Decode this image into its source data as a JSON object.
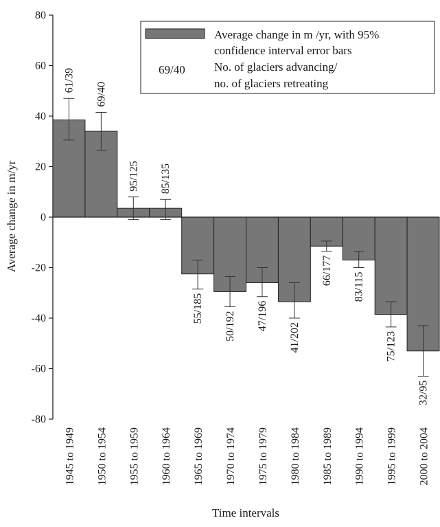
{
  "chart_data": {
    "type": "bar",
    "xlabel": "Time intervals",
    "ylabel": "Average change in m/yr",
    "ylim": [
      -80,
      80
    ],
    "yticks": [
      80,
      60,
      40,
      20,
      0,
      -20,
      -40,
      -60,
      -80
    ],
    "grid": false,
    "legend_position": "top-right",
    "bar_color": "#777777",
    "categories": [
      "1945 to 1949",
      "1950 to 1954",
      "1955 to 1959",
      "1960 to 1964",
      "1965 to 1969",
      "1970 to 1974",
      "1975 to 1979",
      "1980 to 1984",
      "1985 to 1989",
      "1990 to 1994",
      "1995 to 1999",
      "2000 to 2004"
    ],
    "values": [
      38.5,
      34,
      3.5,
      3.5,
      -22.5,
      -29.5,
      -26,
      -33.5,
      -11.5,
      -17,
      -38.5,
      -53
    ],
    "error_low": [
      30.5,
      26.5,
      -1,
      -1,
      -28.5,
      -35.5,
      -31.5,
      -40,
      -13.5,
      -20,
      -43.5,
      -63
    ],
    "error_high": [
      47,
      41.5,
      8,
      7,
      -17,
      -23.5,
      -20,
      -26,
      -9.5,
      -13.5,
      -33.5,
      -43
    ],
    "annotations": [
      "61/39",
      "69/40",
      "95/125",
      "85/135",
      "55/185",
      "50/192",
      "47/196",
      "41/202",
      "66/177",
      "83/115",
      "75/123",
      "32/95"
    ],
    "legend": {
      "bar_entry": [
        "Average change in m /yr, with 95%",
        "confidence interval error bars"
      ],
      "sample_label": "69/40",
      "label_entry": [
        "No. of glaciers advancing/",
        "no. of glaciers retreating"
      ]
    }
  }
}
